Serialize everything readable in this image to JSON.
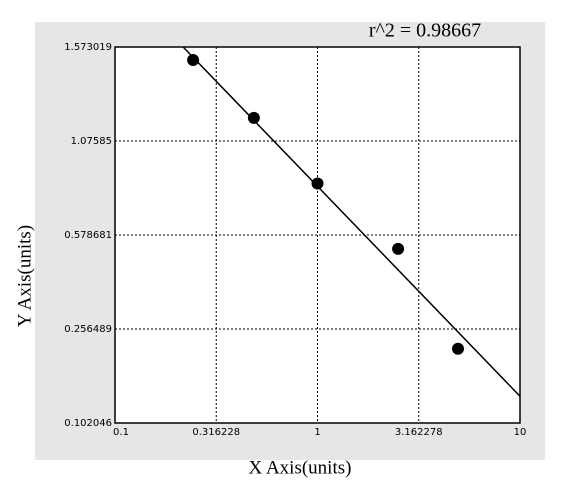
{
  "chart_data": {
    "type": "scatter",
    "annotation": "r^2  = 0.98667",
    "x_label": "X Axis(units)",
    "y_label": "Y Axis(units)",
    "x_scale": "log",
    "xlim": [
      0.1,
      10
    ],
    "xticks": [
      0.1,
      0.316228,
      1,
      3.162278,
      10
    ],
    "ylim": [
      0.102046,
      1.573019
    ],
    "yticks": [
      0.102046,
      0.256489,
      0.578681,
      1.07585,
      1.573019
    ],
    "grid": true,
    "color": "#000000",
    "x": [
      0.243,
      0.485,
      1.0,
      2.5,
      4.94
    ],
    "values": [
      1.504,
      1.198,
      0.851,
      0.531,
      0.224
    ],
    "fit": {
      "x": [
        0.217,
        10
      ],
      "y": [
        1.573,
        0.146
      ]
    }
  }
}
